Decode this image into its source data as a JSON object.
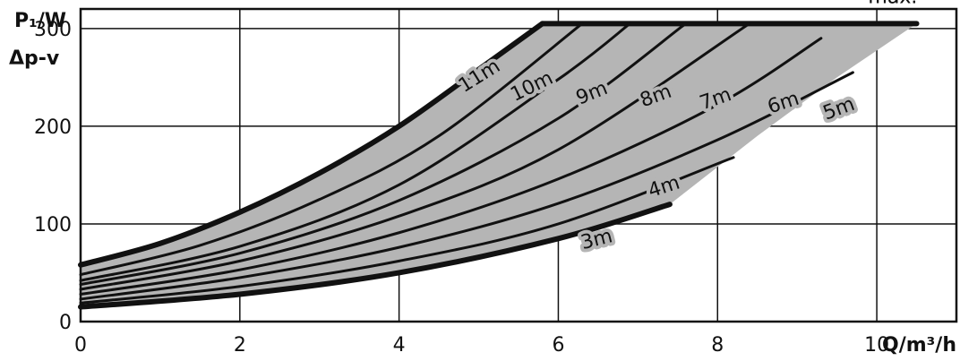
{
  "chart_data": {
    "type": "line",
    "ylabel_line1": "P₁/W",
    "ylabel_line2": "Δp-v",
    "xlabel": "Q/m³/h",
    "xlim": [
      0,
      11
    ],
    "ylim": [
      0,
      320
    ],
    "x_ticks": [
      0,
      2,
      4,
      6,
      8,
      10
    ],
    "y_ticks": [
      0,
      100,
      200,
      300
    ],
    "grid": true,
    "fill_color": "#b5b5b5",
    "line_color": "#111111",
    "series": [
      {
        "name": "max.",
        "x": [
          5.8,
          10.5
        ],
        "y": [
          305,
          305
        ]
      },
      {
        "name": "11m",
        "x": [
          0,
          1,
          2,
          3,
          4,
          5,
          5.8
        ],
        "y": [
          58,
          80,
          112,
          152,
          200,
          258,
          305
        ]
      },
      {
        "name": "10m",
        "x": [
          0,
          1.5,
          3,
          4.5,
          6.3
        ],
        "y": [
          48,
          78,
          125,
          190,
          305
        ]
      },
      {
        "name": "9m",
        "x": [
          0,
          2,
          4,
          6,
          6.9
        ],
        "y": [
          42,
          77,
          140,
          248,
          305
        ]
      },
      {
        "name": "8m",
        "x": [
          0,
          2,
          4,
          6,
          7.6
        ],
        "y": [
          38,
          70,
          124,
          208,
          305
        ]
      },
      {
        "name": "7m",
        "x": [
          0,
          2,
          4,
          6,
          8.4
        ],
        "y": [
          33,
          62,
          108,
          176,
          305
        ]
      },
      {
        "name": "6m",
        "x": [
          0,
          2,
          4,
          6,
          8,
          9.3
        ],
        "y": [
          28,
          53,
          91,
          146,
          222,
          290
        ]
      },
      {
        "name": "5m",
        "x": [
          0,
          2,
          4,
          6,
          8,
          9.7
        ],
        "y": [
          23,
          45,
          76,
          121,
          186,
          255
        ]
      },
      {
        "name": "4m",
        "x": [
          0,
          2,
          4,
          6,
          8.2
        ],
        "y": [
          19,
          36,
          62,
          100,
          168
        ]
      },
      {
        "name": "3m",
        "x": [
          0,
          2,
          4,
          6,
          7.4
        ],
        "y": [
          15,
          28,
          50,
          85,
          120
        ]
      }
    ],
    "envelope": {
      "x": [
        0,
        1,
        2,
        3,
        4,
        5,
        5.8,
        10.5,
        9.5,
        8.5,
        7.4,
        6,
        4,
        2,
        0
      ],
      "y": [
        58,
        80,
        112,
        152,
        200,
        258,
        305,
        305,
        250,
        190,
        120,
        85,
        50,
        28,
        15
      ]
    },
    "labels": [
      {
        "text": "max.",
        "x": 10.2,
        "y": 326,
        "rotate": 0
      },
      {
        "text": "11m",
        "x": 5.05,
        "y": 246,
        "rotate": -32
      },
      {
        "text": "10m",
        "x": 5.7,
        "y": 235,
        "rotate": -26
      },
      {
        "text": "9m",
        "x": 6.45,
        "y": 228,
        "rotate": -22
      },
      {
        "text": "8m",
        "x": 7.25,
        "y": 225,
        "rotate": -20
      },
      {
        "text": "7m",
        "x": 8.0,
        "y": 222,
        "rotate": -19
      },
      {
        "text": "6m",
        "x": 8.85,
        "y": 218,
        "rotate": -18
      },
      {
        "text": "5m",
        "x": 9.55,
        "y": 212,
        "rotate": -20
      },
      {
        "text": "4m",
        "x": 7.35,
        "y": 132,
        "rotate": -18
      },
      {
        "text": "3m",
        "x": 6.5,
        "y": 78,
        "rotate": -14
      }
    ]
  }
}
